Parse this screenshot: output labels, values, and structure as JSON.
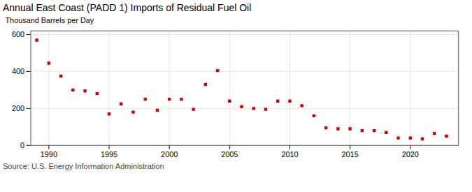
{
  "chart_data": {
    "type": "scatter",
    "title": "Annual East Coast (PADD 1) Imports of Residual Fuel Oil",
    "ylabel": "Thousand Barrels per Day",
    "source": "Source: U.S. Energy Information Administration",
    "x": [
      1989,
      1990,
      1991,
      1992,
      1993,
      1994,
      1995,
      1996,
      1997,
      1998,
      1999,
      2000,
      2001,
      2002,
      2003,
      2004,
      2005,
      2006,
      2007,
      2008,
      2009,
      2010,
      2011,
      2012,
      2013,
      2014,
      2015,
      2016,
      2017,
      2018,
      2019,
      2020,
      2021,
      2022,
      2023
    ],
    "values": [
      570,
      445,
      375,
      300,
      295,
      280,
      170,
      225,
      180,
      250,
      190,
      250,
      250,
      195,
      330,
      405,
      240,
      210,
      200,
      195,
      240,
      240,
      215,
      160,
      95,
      90,
      90,
      80,
      80,
      70,
      40,
      40,
      35,
      65,
      50
    ],
    "color": "#cc0000",
    "marker": "square",
    "xlim": [
      1988.5,
      2024
    ],
    "xticks": [
      1990,
      1995,
      2000,
      2005,
      2010,
      2015,
      2020
    ],
    "ylim": [
      0,
      620
    ],
    "yticks": [
      0,
      200,
      400,
      600
    ],
    "grid": true
  }
}
